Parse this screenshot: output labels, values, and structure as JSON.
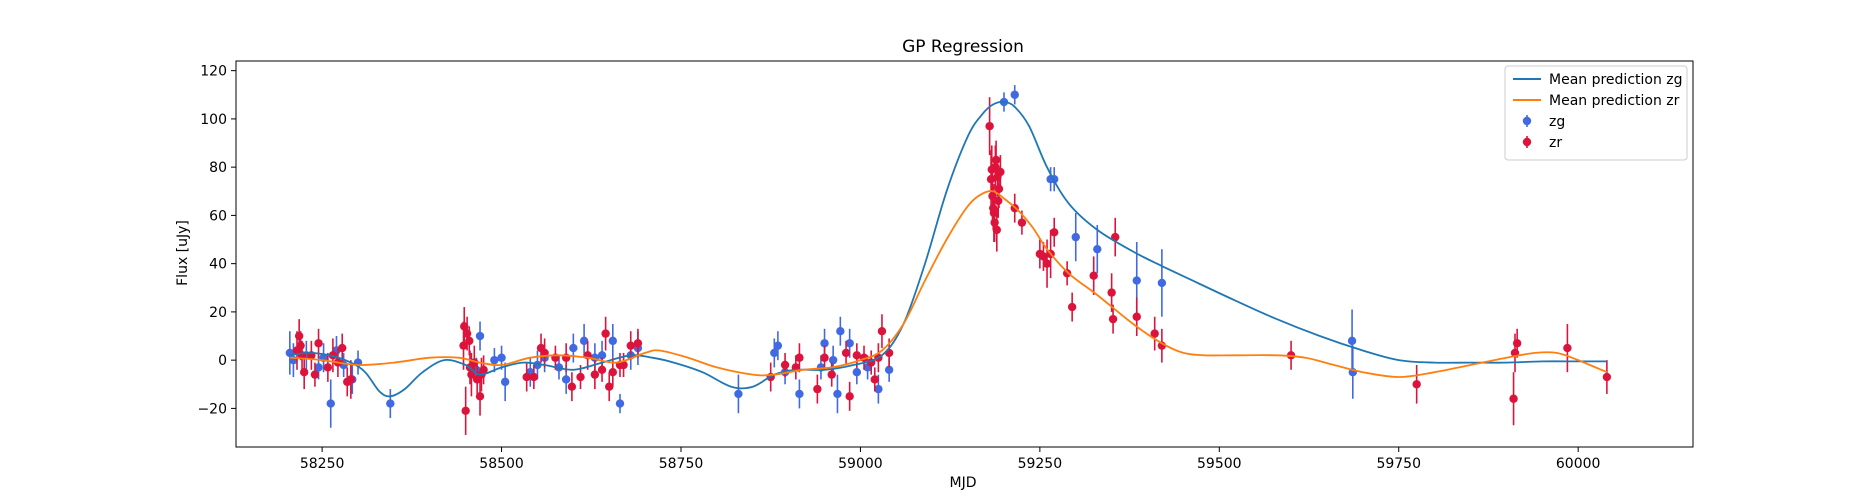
{
  "chart_data": {
    "type": "scatter",
    "title": "GP Regression",
    "xlabel": "MJD",
    "ylabel": "Flux [uJy]",
    "xlim": [
      58130,
      60160
    ],
    "ylim": [
      -36,
      124
    ],
    "xticks": [
      58250,
      58500,
      58750,
      59000,
      59250,
      59500,
      59750,
      60000
    ],
    "yticks": [
      -20,
      0,
      20,
      40,
      60,
      80,
      100,
      120
    ],
    "legend_position": "top-right",
    "grid": false,
    "colors": {
      "line_zg": "#1f77b4",
      "line_zr": "#ff7f0e",
      "points_zg": "#4169e1",
      "points_zr": "#dc143c"
    },
    "legend": [
      {
        "label": "Mean prediction zg",
        "kind": "line",
        "color": "#1f77b4"
      },
      {
        "label": "Mean prediction zr",
        "kind": "line",
        "color": "#ff7f0e"
      },
      {
        "label": "zg",
        "kind": "errorbar",
        "color": "#4169e1"
      },
      {
        "label": "zr",
        "kind": "errorbar",
        "color": "#dc143c"
      }
    ],
    "lines": [
      {
        "name": "Mean prediction zg",
        "color": "#1f77b4",
        "x": [
          58205,
          58230,
          58260,
          58290,
          58310,
          58330,
          58345,
          58365,
          58390,
          58420,
          58450,
          58470,
          58500,
          58530,
          58560,
          58600,
          58640,
          58680,
          58710,
          58740,
          58780,
          58820,
          58850,
          58880,
          58910,
          58950,
          58990,
          59030,
          59060,
          59090,
          59120,
          59150,
          59170,
          59185,
          59200,
          59215,
          59235,
          59260,
          59290,
          59330,
          59380,
          59420,
          59470,
          59520,
          59580,
          59640,
          59700,
          59750,
          59800,
          59850,
          59900,
          59950,
          60000,
          60040
        ],
        "y": [
          2,
          3,
          2,
          -1,
          -5,
          -13,
          -15,
          -12,
          -5,
          0,
          -2,
          -6,
          -3,
          -1,
          -2,
          -4,
          -1,
          2,
          1,
          -1,
          -5,
          -11,
          -11,
          -6,
          -4,
          -4,
          -2,
          2,
          15,
          40,
          70,
          93,
          102,
          106,
          107,
          105,
          97,
          80,
          65,
          54,
          45,
          39,
          32,
          25,
          17,
          10,
          4,
          0,
          -1,
          -1,
          -1,
          -0.5,
          -0.5,
          -0.5
        ]
      },
      {
        "name": "Mean prediction zr",
        "color": "#ff7f0e",
        "x": [
          58205,
          58250,
          58300,
          58350,
          58400,
          58440,
          58470,
          58500,
          58540,
          58580,
          58620,
          58660,
          58700,
          58720,
          58760,
          58800,
          58850,
          58880,
          58920,
          58960,
          59000,
          59030,
          59060,
          59090,
          59120,
          59150,
          59170,
          59185,
          59200,
          59220,
          59240,
          59260,
          59290,
          59330,
          59380,
          59420,
          59450,
          59480,
          59520,
          59580,
          59620,
          59660,
          59700,
          59750,
          59800,
          59850,
          59900,
          59940,
          59970,
          60000,
          60040
        ],
        "y": [
          1,
          0,
          -2,
          -1,
          1,
          1,
          -1,
          -2,
          1,
          2,
          1,
          -1,
          3,
          4,
          1,
          -3,
          -6,
          -6,
          -4,
          -3,
          0,
          4,
          15,
          33,
          50,
          64,
          69,
          70,
          67,
          62,
          55,
          46,
          36,
          27,
          15,
          7,
          3,
          2,
          2,
          2,
          1,
          -2,
          -5,
          -7,
          -5,
          -2,
          1,
          3,
          3,
          0,
          -5
        ]
      }
    ],
    "series": [
      {
        "name": "zg",
        "color": "#4169e1",
        "points": [
          [
            58205,
            3,
            9
          ],
          [
            58210,
            0,
            7
          ],
          [
            58228,
            2,
            6
          ],
          [
            58245,
            -3,
            5
          ],
          [
            58252,
            1,
            6
          ],
          [
            58262,
            -18,
            10
          ],
          [
            58270,
            4,
            6
          ],
          [
            58280,
            -2,
            5
          ],
          [
            58292,
            -8,
            6
          ],
          [
            58300,
            -1,
            5
          ],
          [
            58345,
            -18,
            6
          ],
          [
            58465,
            -4,
            5
          ],
          [
            58470,
            10,
            6
          ],
          [
            58490,
            0,
            5
          ],
          [
            58500,
            1,
            5
          ],
          [
            58505,
            -9,
            8
          ],
          [
            58540,
            -5,
            6
          ],
          [
            58550,
            -2,
            6
          ],
          [
            58560,
            1,
            6
          ],
          [
            58580,
            -3,
            5
          ],
          [
            58590,
            -8,
            6
          ],
          [
            58600,
            5,
            6
          ],
          [
            58615,
            8,
            7
          ],
          [
            58630,
            1,
            6
          ],
          [
            58640,
            2,
            6
          ],
          [
            58655,
            8,
            7
          ],
          [
            58665,
            -18,
            4
          ],
          [
            58680,
            2,
            6
          ],
          [
            58690,
            5,
            7
          ],
          [
            58830,
            -14,
            8
          ],
          [
            58880,
            3,
            6
          ],
          [
            58885,
            6,
            6
          ],
          [
            58895,
            -5,
            5
          ],
          [
            58915,
            -14,
            6
          ],
          [
            58945,
            -3,
            5
          ],
          [
            58950,
            7,
            6
          ],
          [
            58962,
            0,
            6
          ],
          [
            58968,
            -14,
            8
          ],
          [
            58972,
            12,
            6
          ],
          [
            58985,
            7,
            6
          ],
          [
            58995,
            -5,
            5
          ],
          [
            59010,
            -3,
            5
          ],
          [
            59025,
            -12,
            6
          ],
          [
            59040,
            -4,
            5
          ],
          [
            59200,
            107,
            4
          ],
          [
            59215,
            110,
            4
          ],
          [
            59265,
            75,
            5
          ],
          [
            59270,
            75,
            5
          ],
          [
            59300,
            51,
            10
          ],
          [
            59330,
            46,
            10
          ],
          [
            59385,
            33,
            16
          ],
          [
            59420,
            32,
            14
          ],
          [
            59685,
            8,
            13
          ],
          [
            59686,
            -5,
            11
          ]
        ]
      },
      {
        "name": "zr",
        "color": "#dc143c",
        "points": [
          [
            58215,
            4,
            8
          ],
          [
            58218,
            10,
            7
          ],
          [
            58220,
            6,
            6
          ],
          [
            58222,
            2,
            6
          ],
          [
            58225,
            -5,
            7
          ],
          [
            58235,
            2,
            6
          ],
          [
            58240,
            -6,
            5
          ],
          [
            58245,
            7,
            6
          ],
          [
            58258,
            -3,
            6
          ],
          [
            58265,
            2,
            7
          ],
          [
            58272,
            -1,
            6
          ],
          [
            58278,
            5,
            6
          ],
          [
            58285,
            -9,
            6
          ],
          [
            58290,
            -8,
            8
          ],
          [
            58447,
            6,
            10
          ],
          [
            58448,
            14,
            8
          ],
          [
            58450,
            -21,
            10
          ],
          [
            58452,
            11,
            7
          ],
          [
            58455,
            8,
            6
          ],
          [
            58456,
            -3,
            7
          ],
          [
            58458,
            -6,
            9
          ],
          [
            58462,
            -1,
            7
          ],
          [
            58466,
            -8,
            6
          ],
          [
            58470,
            -15,
            8
          ],
          [
            58472,
            -6,
            7
          ],
          [
            58475,
            -4,
            6
          ],
          [
            58535,
            -7,
            6
          ],
          [
            58545,
            -7,
            5
          ],
          [
            58555,
            5,
            6
          ],
          [
            58560,
            3,
            6
          ],
          [
            58575,
            1,
            5
          ],
          [
            58590,
            1,
            6
          ],
          [
            58598,
            -11,
            6
          ],
          [
            58610,
            -7,
            5
          ],
          [
            58620,
            2,
            6
          ],
          [
            58630,
            -6,
            6
          ],
          [
            58640,
            -4,
            5
          ],
          [
            58645,
            11,
            7
          ],
          [
            58650,
            -11,
            6
          ],
          [
            58655,
            -5,
            6
          ],
          [
            58665,
            -2,
            5
          ],
          [
            58670,
            -2,
            5
          ],
          [
            58680,
            6,
            6
          ],
          [
            58690,
            7,
            6
          ],
          [
            58875,
            -7,
            6
          ],
          [
            58895,
            -2,
            5
          ],
          [
            58910,
            -3,
            5
          ],
          [
            58915,
            1,
            6
          ],
          [
            58940,
            -12,
            6
          ],
          [
            58950,
            1,
            5
          ],
          [
            58960,
            -6,
            5
          ],
          [
            58980,
            3,
            5
          ],
          [
            58985,
            -15,
            6
          ],
          [
            58995,
            2,
            5
          ],
          [
            59005,
            1,
            5
          ],
          [
            59015,
            -1,
            5
          ],
          [
            59020,
            -8,
            5
          ],
          [
            59025,
            1,
            6
          ],
          [
            59030,
            12,
            7
          ],
          [
            59040,
            3,
            6
          ],
          [
            59180,
            97,
            12
          ],
          [
            59182,
            75,
            12
          ],
          [
            59183,
            79,
            10
          ],
          [
            59184,
            68,
            10
          ],
          [
            59185,
            63,
            9
          ],
          [
            59186,
            61,
            12
          ],
          [
            59187,
            57,
            8
          ],
          [
            59188,
            80,
            9
          ],
          [
            59189,
            83,
            8
          ],
          [
            59190,
            54,
            9
          ],
          [
            59191,
            76,
            8
          ],
          [
            59192,
            66,
            7
          ],
          [
            59193,
            71,
            8
          ],
          [
            59195,
            78,
            7
          ],
          [
            59215,
            63,
            6
          ],
          [
            59225,
            57,
            5
          ],
          [
            59250,
            44,
            6
          ],
          [
            59255,
            43,
            6
          ],
          [
            59260,
            40,
            10
          ],
          [
            59265,
            44,
            10
          ],
          [
            59270,
            53,
            6
          ],
          [
            59288,
            36,
            5
          ],
          [
            59295,
            22,
            6
          ],
          [
            59325,
            35,
            8
          ],
          [
            59350,
            28,
            8
          ],
          [
            59352,
            17,
            6
          ],
          [
            59355,
            51,
            8
          ],
          [
            59385,
            18,
            8
          ],
          [
            59410,
            11,
            7
          ],
          [
            59420,
            6,
            7
          ],
          [
            59600,
            2,
            6
          ],
          [
            59775,
            -10,
            8
          ],
          [
            59910,
            -16,
            11
          ],
          [
            59912,
            3,
            8
          ],
          [
            59915,
            7,
            6
          ],
          [
            59985,
            5,
            10
          ],
          [
            60040,
            -7,
            7
          ]
        ]
      }
    ]
  }
}
